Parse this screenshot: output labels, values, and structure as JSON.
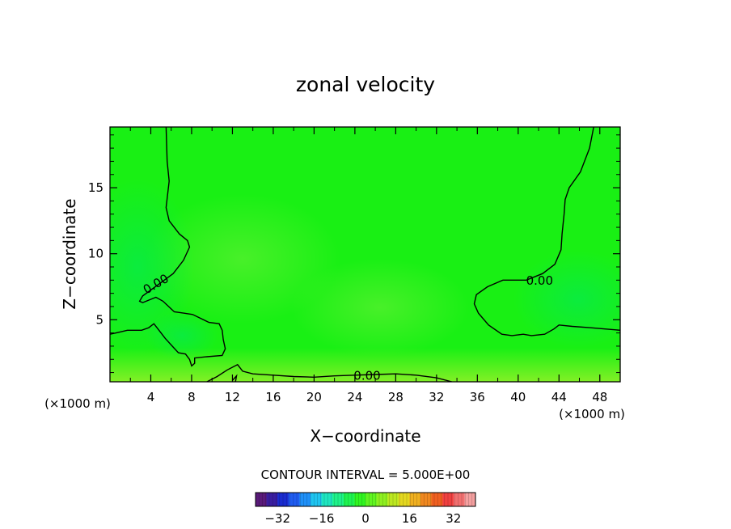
{
  "chart_data": {
    "type": "heatmap",
    "title": "zonal velocity",
    "xlabel": "X−coordinate",
    "ylabel": "Z−coordinate",
    "x_unit_left": "(×1000 m)",
    "x_unit_right": "(×1000 m)",
    "xlim": [
      0,
      50
    ],
    "ylim": [
      0.3,
      19.6
    ],
    "x_ticks": [
      4,
      8,
      12,
      16,
      20,
      24,
      28,
      32,
      36,
      40,
      44,
      48
    ],
    "y_ticks": [
      5,
      10,
      15
    ],
    "contour_interval_text": "CONTOUR INTERVAL = 5.000E+00",
    "contour_labels": [
      {
        "text": "0.00",
        "x": 4.5,
        "y": 7.7,
        "angle": -30
      },
      {
        "text": "0.00",
        "x": 42.1,
        "y": 7.95,
        "angle": 0
      },
      {
        "text": "0.00",
        "x": 25.2,
        "y": 0.75,
        "angle": 0
      }
    ],
    "zero_contours": [
      {
        "name": "left",
        "points": [
          [
            5.5,
            19.6
          ],
          [
            5.6,
            17
          ],
          [
            5.8,
            15.5
          ],
          [
            5.5,
            13.5
          ],
          [
            5.8,
            12.5
          ],
          [
            6.8,
            11.5
          ],
          [
            7.6,
            11
          ],
          [
            7.8,
            10.5
          ],
          [
            7.2,
            9.5
          ],
          [
            6.2,
            8.5
          ],
          [
            4.8,
            7.7
          ],
          [
            3.2,
            6.8
          ],
          [
            2.9,
            6.4
          ],
          [
            3.2,
            6.3
          ],
          [
            4.5,
            6.7
          ],
          [
            5.2,
            6.4
          ],
          [
            6.3,
            5.6
          ],
          [
            7.2,
            5.5
          ],
          [
            8.1,
            5.4
          ],
          [
            9.7,
            4.8
          ],
          [
            10.7,
            4.7
          ],
          [
            11.0,
            4.2
          ],
          [
            11.1,
            3.5
          ],
          [
            11.3,
            2.8
          ],
          [
            11.0,
            2.3
          ],
          [
            9.5,
            2.2
          ],
          [
            8.3,
            2.1
          ],
          [
            8.3,
            1.7
          ],
          [
            8.0,
            1.5
          ],
          [
            7.8,
            2.0
          ],
          [
            7.4,
            2.4
          ],
          [
            6.7,
            2.5
          ],
          [
            6.1,
            3.0
          ],
          [
            5.4,
            3.6
          ],
          [
            4.8,
            4.2
          ],
          [
            4.3,
            4.7
          ],
          [
            3.8,
            4.4
          ],
          [
            3.1,
            4.2
          ],
          [
            1.7,
            4.2
          ],
          [
            0.6,
            4.0
          ],
          [
            0,
            3.9
          ]
        ]
      },
      {
        "name": "bottom",
        "points": [
          [
            9.5,
            0.3
          ],
          [
            10.5,
            0.7
          ],
          [
            11.5,
            1.2
          ],
          [
            12.5,
            1.6
          ],
          [
            13.0,
            1.1
          ],
          [
            14.0,
            0.9
          ],
          [
            16,
            0.8
          ],
          [
            18,
            0.7
          ],
          [
            20,
            0.65
          ],
          [
            22,
            0.75
          ],
          [
            24,
            0.8
          ],
          [
            26,
            0.85
          ],
          [
            28,
            0.9
          ],
          [
            30,
            0.8
          ],
          [
            32,
            0.6
          ],
          [
            33.5,
            0.3
          ]
        ]
      },
      {
        "name": "bottom-dip",
        "points": [
          [
            12.0,
            0.4
          ],
          [
            12.4,
            0.75
          ],
          [
            12.3,
            0.3
          ]
        ]
      },
      {
        "name": "right",
        "points": [
          [
            47.4,
            19.6
          ],
          [
            47.0,
            18
          ],
          [
            46.1,
            16.2
          ],
          [
            45.0,
            15.0
          ],
          [
            44.6,
            14.1
          ],
          [
            44.5,
            13.0
          ],
          [
            44.3,
            11.5
          ],
          [
            44.2,
            10.3
          ],
          [
            43.6,
            9.2
          ],
          [
            42.4,
            8.5
          ],
          [
            40.8,
            8.0
          ],
          [
            38.5,
            8.0
          ],
          [
            37.0,
            7.5
          ],
          [
            35.9,
            6.9
          ],
          [
            35.7,
            6.2
          ],
          [
            36.1,
            5.5
          ],
          [
            37.1,
            4.6
          ],
          [
            38.4,
            3.9
          ],
          [
            39.4,
            3.8
          ],
          [
            40.5,
            3.9
          ],
          [
            41.3,
            3.8
          ],
          [
            42.6,
            3.9
          ],
          [
            43.5,
            4.3
          ],
          [
            44.0,
            4.6
          ],
          [
            45.3,
            4.5
          ],
          [
            47,
            4.4
          ],
          [
            48.5,
            4.3
          ],
          [
            50,
            4.2
          ]
        ]
      }
    ],
    "colorbar": {
      "ticks": [
        -32,
        -16,
        0,
        16,
        32
      ],
      "range": [
        -40,
        40
      ],
      "colors": [
        "#5a1a7a",
        "#3a1ea0",
        "#1a2cd0",
        "#1f5cf0",
        "#1f90f8",
        "#1fc4f0",
        "#1fe6c0",
        "#1ff28a",
        "#1ff450",
        "#30f520",
        "#60f520",
        "#8ef020",
        "#bce820",
        "#e4d820",
        "#f0b020",
        "#f08820",
        "#f06020",
        "#f04040",
        "#f27070",
        "#f4a0a0"
      ]
    }
  }
}
